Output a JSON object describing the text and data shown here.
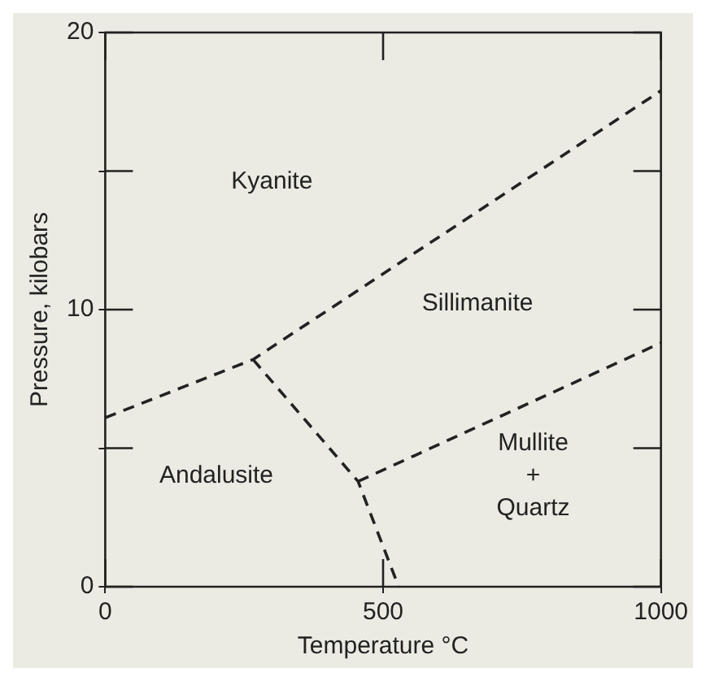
{
  "chart_data": {
    "type": "line",
    "xlabel": "Temperature °C",
    "ylabel": "Pressure, kilobars",
    "xlim": [
      0,
      1000
    ],
    "xticks": [
      0,
      500,
      1000
    ],
    "ylim": [
      0,
      20
    ],
    "yticks": [
      0,
      {
        "value": 5,
        "label": null
      },
      10,
      {
        "value": 15,
        "label": null
      },
      20
    ],
    "grid": false,
    "legend": false,
    "marker": "none",
    "line_style": "dashed",
    "series": [
      {
        "color": "#222222",
        "x": [
          0,
          266,
          1000
        ],
        "values": [
          6.1,
          8.2,
          17.9
        ]
      },
      {
        "color": "#222222",
        "x": [
          266,
          455,
          528
        ],
        "values": [
          8.2,
          3.8,
          0
        ]
      },
      {
        "color": "#222222",
        "x": [
          455,
          1000
        ],
        "values": [
          3.8,
          8.8
        ]
      }
    ],
    "annotations": [
      "Kyanite",
      "Sillimanite",
      "Andalusite",
      "Mullite\n+\nQuartz"
    ]
  }
}
